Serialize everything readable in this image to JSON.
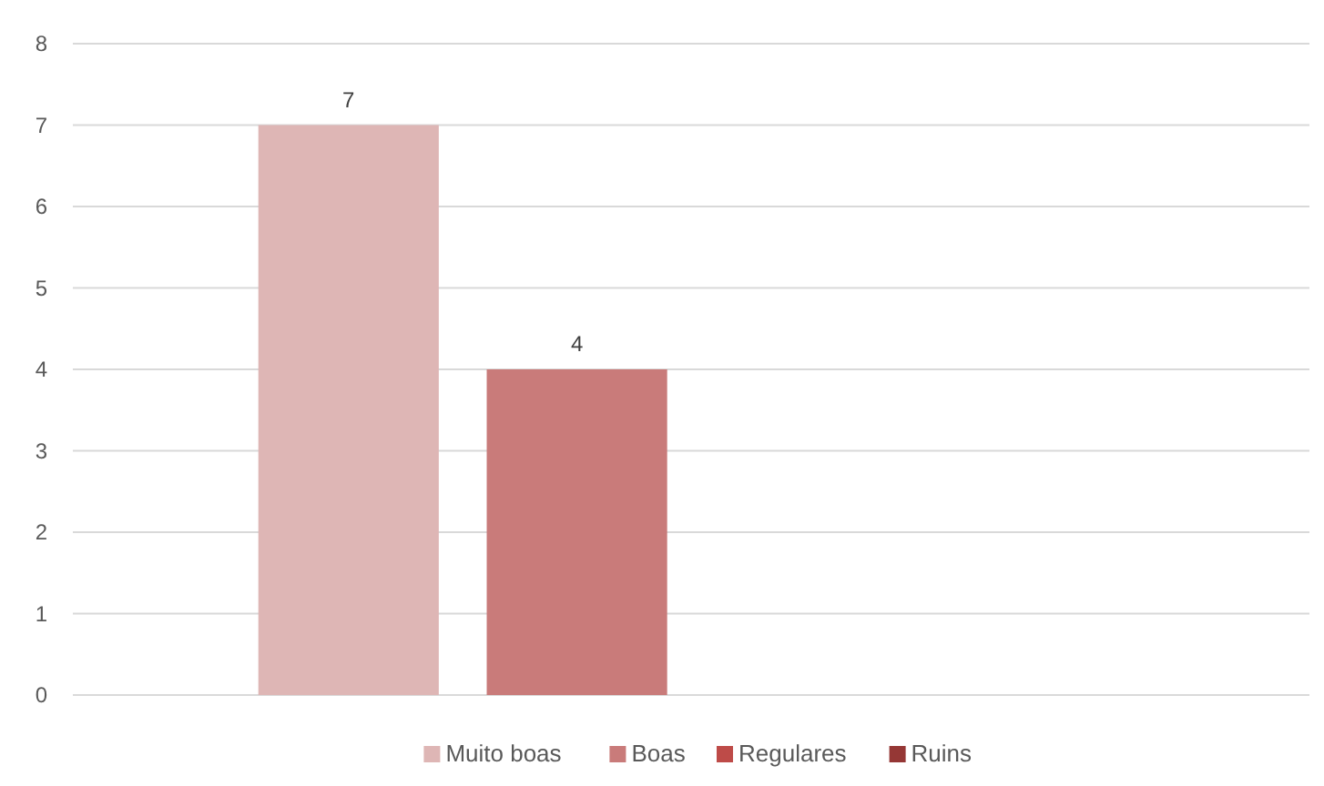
{
  "chart_data": {
    "type": "bar",
    "categories": [
      null
    ],
    "series": [
      {
        "name": "Muito boas",
        "color": "#deb6b5",
        "values": [
          7
        ]
      },
      {
        "name": "Boas",
        "color": "#c97b7a",
        "values": [
          4
        ]
      },
      {
        "name": "Regulares",
        "color": "#be4b48",
        "values": [
          null
        ]
      },
      {
        "name": "Ruins",
        "color": "#953735",
        "values": [
          null
        ]
      }
    ],
    "ylim": [
      0,
      8
    ],
    "yticks": [
      0,
      1,
      2,
      3,
      4,
      5,
      6,
      7,
      8
    ],
    "grid": "y",
    "legend": "bottom",
    "data_labels": true
  }
}
